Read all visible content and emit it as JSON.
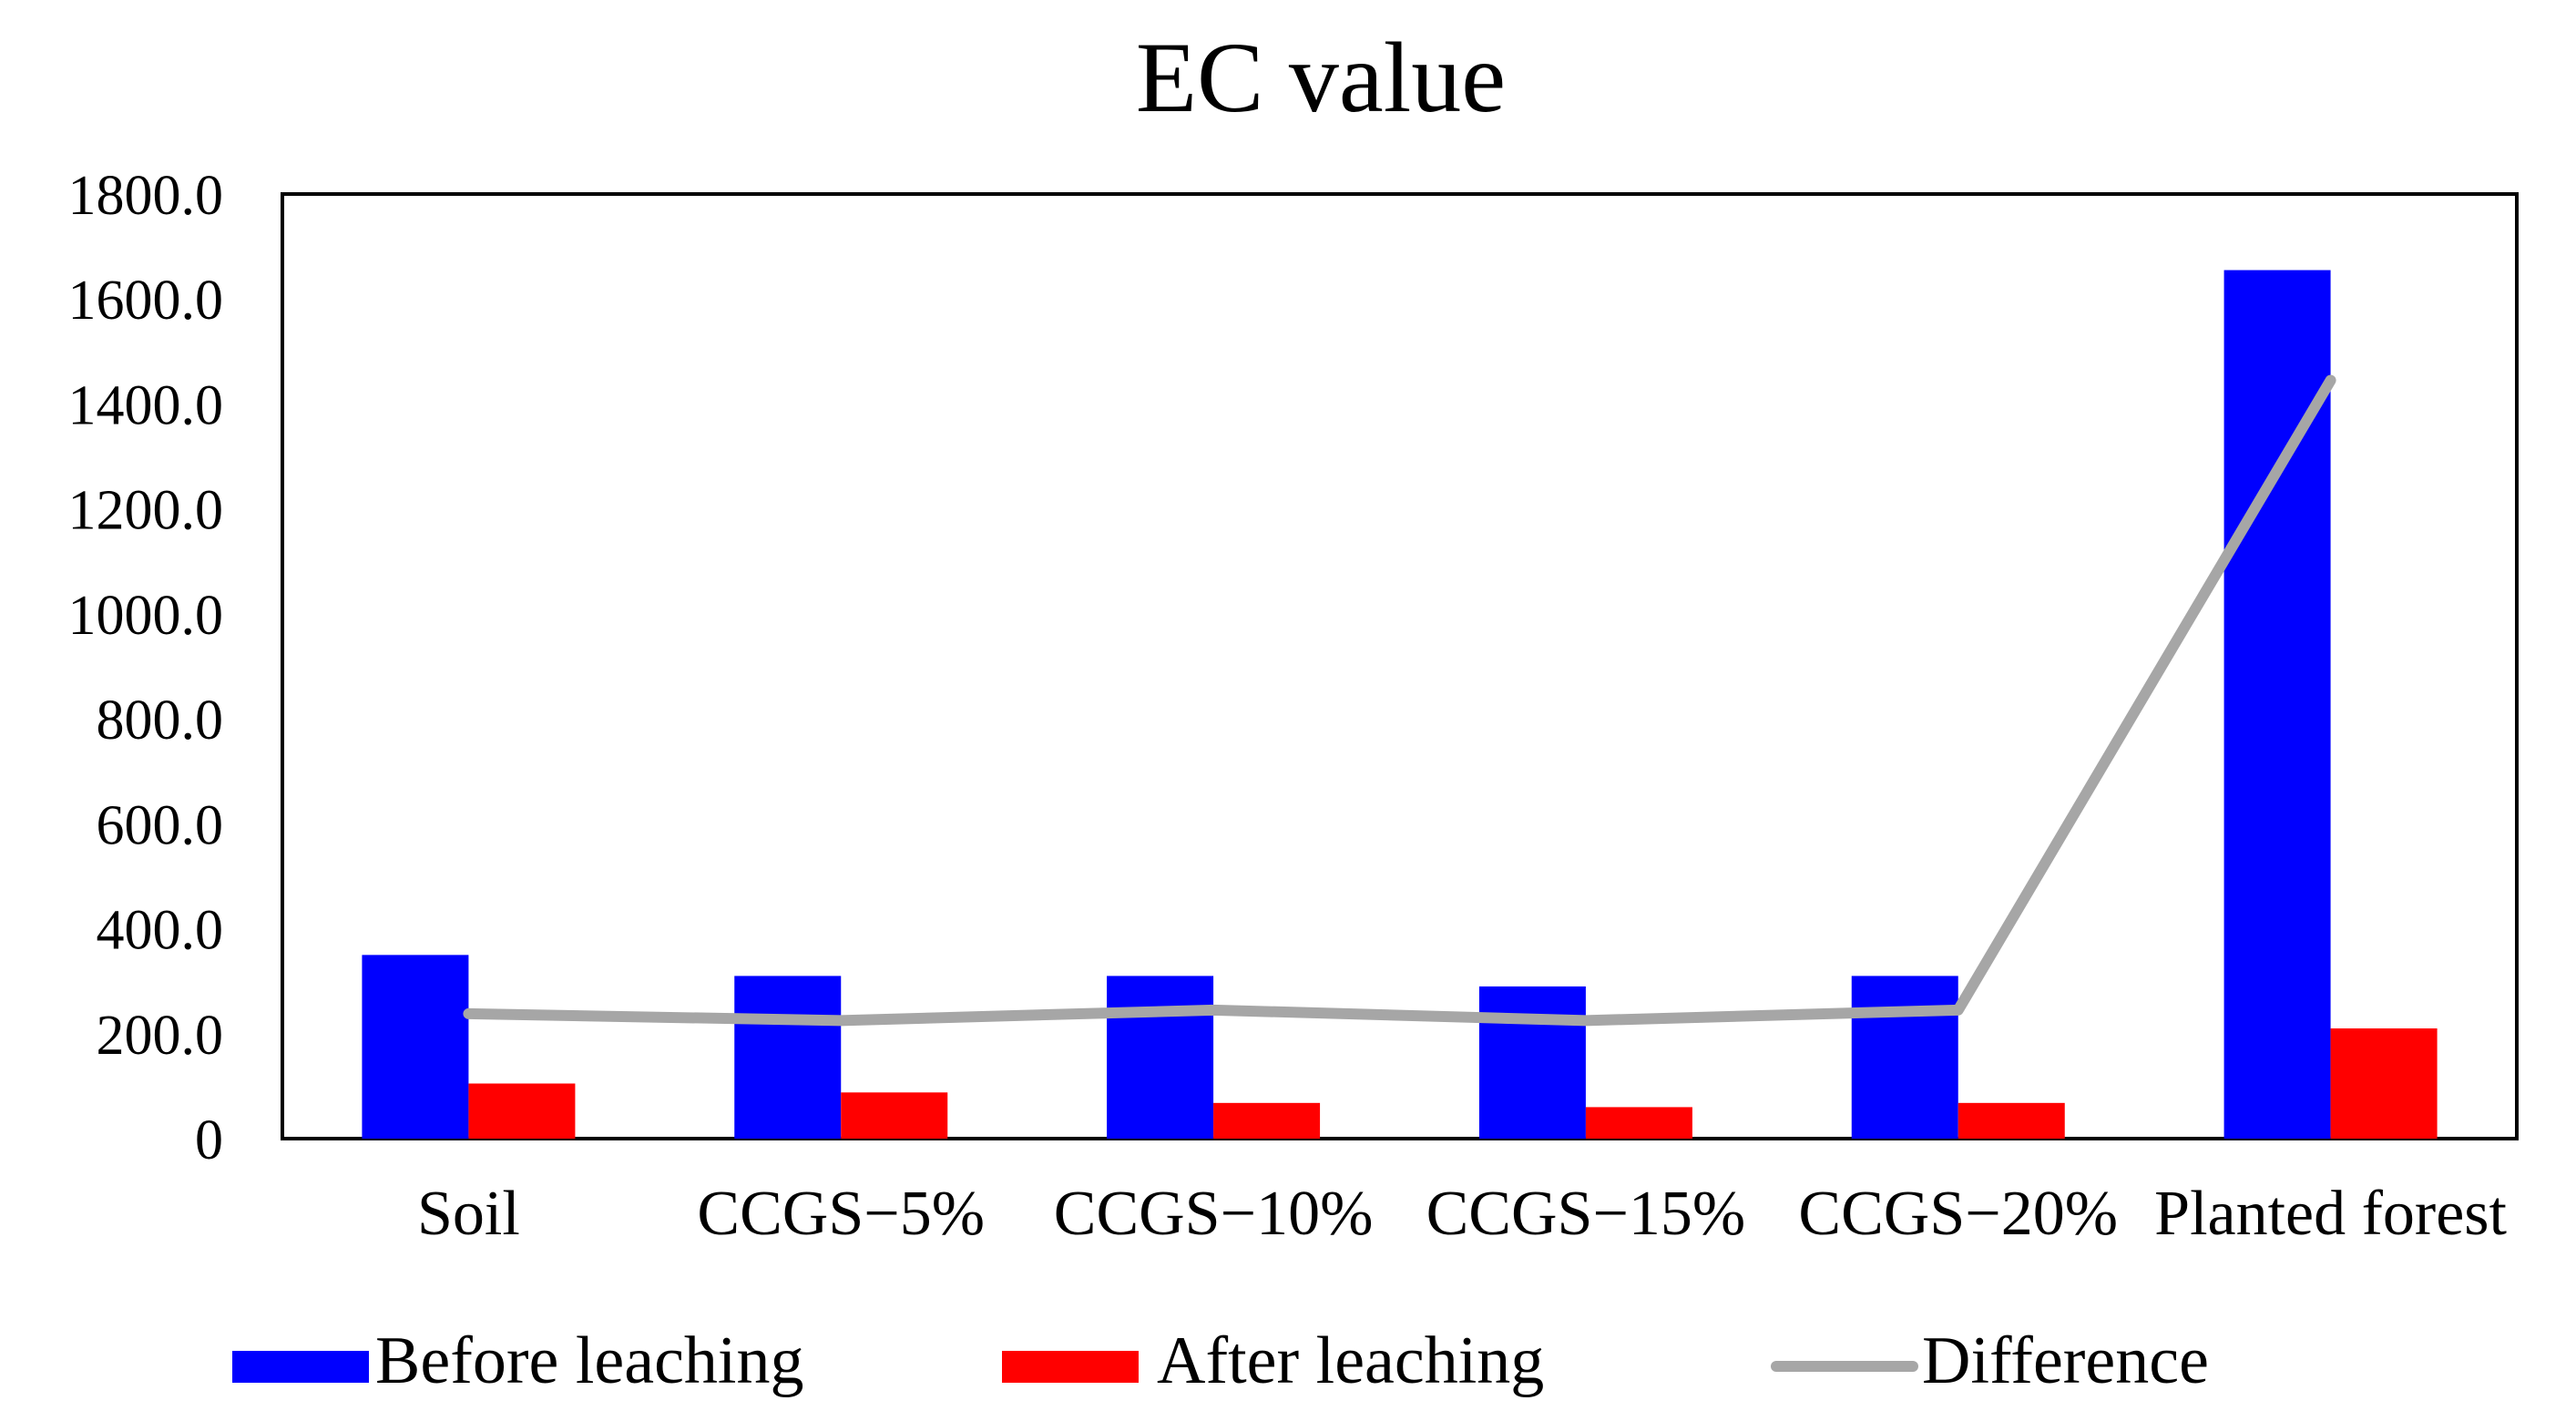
{
  "chart_data": {
    "type": "bar",
    "title": "EC value",
    "xlabel": "",
    "ylabel": "",
    "ylim": [
      0,
      1800
    ],
    "yticks": [
      "0",
      "200.0",
      "400.0",
      "600.0",
      "800.0",
      "1000.0",
      "1200.0",
      "1400.0",
      "1600.0",
      "1800.0"
    ],
    "ytick_values": [
      0,
      200,
      400,
      600,
      800,
      1000,
      1200,
      1400,
      1600,
      1800
    ],
    "grid": false,
    "legend_position": "bottom",
    "categories": [
      "Soil",
      "CCGS−5%",
      "CCGS−10%",
      "CCGS−15%",
      "CCGS−20%",
      "Planted forest"
    ],
    "series": [
      {
        "name": "Before leaching",
        "kind": "bar",
        "color": "#0000ff",
        "values": [
          350,
          310,
          310,
          290,
          310,
          1655
        ]
      },
      {
        "name": "After leaching",
        "kind": "bar",
        "color": "#ff0000",
        "values": [
          105,
          88,
          68,
          60,
          68,
          210
        ]
      },
      {
        "name": "Difference",
        "kind": "line",
        "color": "#a6a6a6",
        "values": [
          238,
          225,
          245,
          225,
          245,
          1445
        ]
      }
    ]
  }
}
